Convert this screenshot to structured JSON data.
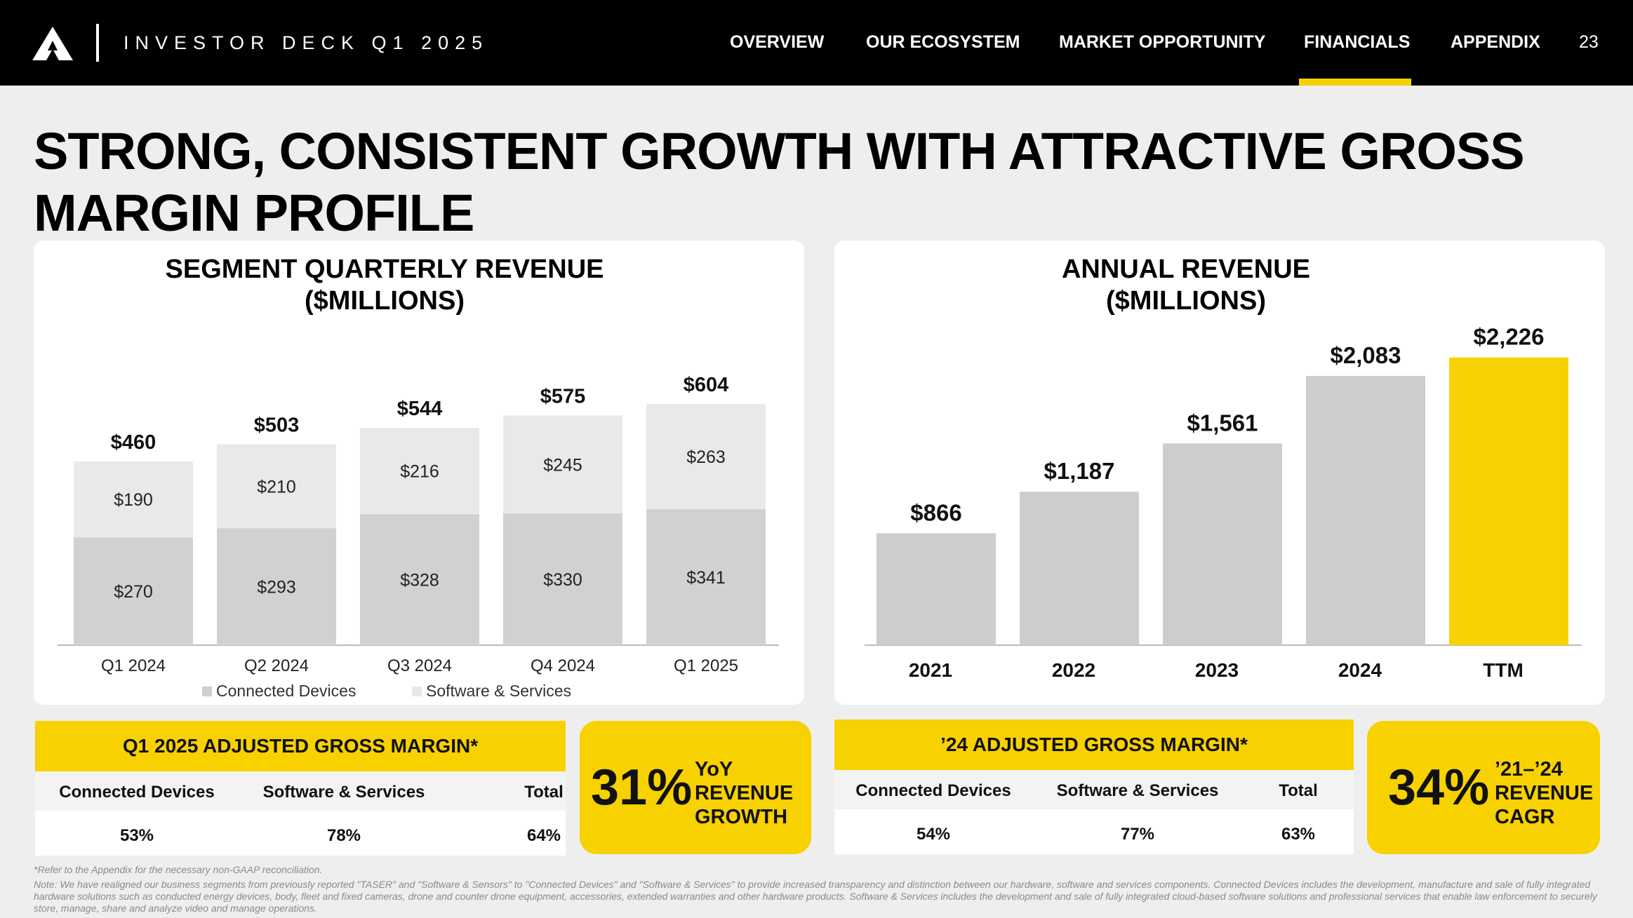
{
  "header": {
    "deck_title": "INVESTOR DECK Q1 2025",
    "nav": [
      {
        "label": "OVERVIEW",
        "active": false
      },
      {
        "label": "OUR ECOSYSTEM",
        "active": false
      },
      {
        "label": "MARKET OPPORTUNITY",
        "active": false
      },
      {
        "label": "FINANCIALS",
        "active": true
      },
      {
        "label": "APPENDIX",
        "active": false
      }
    ],
    "page_number": "23",
    "logo_icon": "axon-delta-logo-icon"
  },
  "headline": {
    "line1": "STRONG, CONSISTENT GROWTH WITH ATTRACTIVE GROSS",
    "line2": "MARGIN PROFILE"
  },
  "chart_data": [
    {
      "type": "bar",
      "stacked": true,
      "title": "SEGMENT QUARTERLY REVENUE",
      "subtitle": "($MILLIONS)",
      "categories": [
        "Q1 2024",
        "Q2 2024",
        "Q3 2024",
        "Q4 2024",
        "Q1 2025"
      ],
      "series": [
        {
          "name": "Connected Devices",
          "values": [
            270,
            293,
            328,
            330,
            341
          ],
          "labels": [
            "$270",
            "$293",
            "$328",
            "$330",
            "$341"
          ],
          "color": "#d1d1d1"
        },
        {
          "name": "Software & Services",
          "values": [
            190,
            210,
            216,
            245,
            263
          ],
          "labels": [
            "$190",
            "$210",
            "$216",
            "$245",
            "$263"
          ],
          "color": "#e9e9e9"
        }
      ],
      "totals": [
        460,
        503,
        544,
        575,
        604
      ],
      "total_labels": [
        "$460",
        "$503",
        "$544",
        "$575",
        "$604"
      ],
      "ylim": [
        0,
        700
      ],
      "legend_position": "bottom",
      "grid": false
    },
    {
      "type": "bar",
      "title": "ANNUAL REVENUE",
      "subtitle": "($MILLIONS)",
      "categories": [
        "2021",
        "2022",
        "2023",
        "2024",
        "TTM"
      ],
      "values": [
        866,
        1187,
        1561,
        2083,
        2226
      ],
      "value_labels": [
        "$866",
        "$1,187",
        "$1,561",
        "$2,083",
        "$2,226"
      ],
      "colors": [
        "#cdcdcd",
        "#cdcdcd",
        "#cdcdcd",
        "#cdcdcd",
        "#f8d100"
      ],
      "ylim": [
        0,
        2400
      ],
      "grid": false
    }
  ],
  "margin_q1": {
    "title": "Q1 2025 ADJUSTED GROSS MARGIN*",
    "columns": [
      "Connected Devices",
      "Software & Services",
      "Total"
    ],
    "values": [
      "53%",
      "78%",
      "64%"
    ]
  },
  "callout_q1": {
    "big": "31%",
    "line1": "YoY",
    "line2": "REVENUE",
    "line3": "GROWTH"
  },
  "margin_24": {
    "title": "’24 ADJUSTED GROSS MARGIN*",
    "columns": [
      "Connected Devices",
      "Software & Services",
      "Total"
    ],
    "values": [
      "54%",
      "77%",
      "63%"
    ]
  },
  "callout_24": {
    "big": "34%",
    "line1": "’21–’24",
    "line2": "REVENUE",
    "line3": "CAGR"
  },
  "footnotes": {
    "refer": "*Refer to the Appendix for the necessary non-GAAP reconciliation.",
    "note": "Note: We have realigned our business segments from previously reported \"TASER\" and \"Software & Sensors\" to \"Connected Devices\" and \"Software & Services\" to provide increased transparency and distinction between our hardware, software and services components. Connected Devices includes the development, manufacture and sale of fully integrated hardware solutions such as conducted energy devices, body, fleet and fixed cameras, drone and counter drone equipment, accessories, extended warranties and other hardware products. Software & Services includes the development and sale of fully integrated cloud-based software solutions and professional services that enable law enforcement to securely store, manage, share and analyze video and manage operations."
  }
}
